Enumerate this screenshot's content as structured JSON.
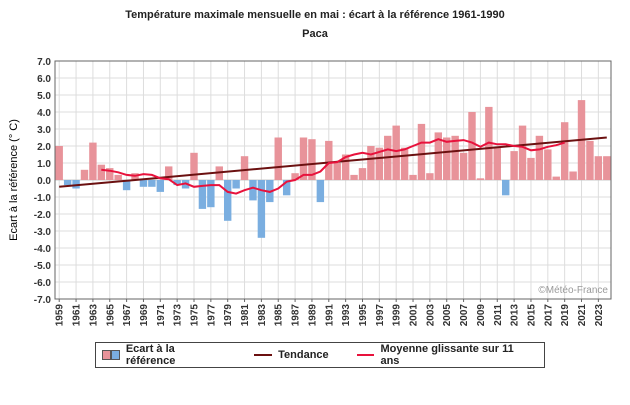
{
  "title": "Température maximale mensuelle en mai : écart à la référence 1961-1990",
  "subtitle": "Paca",
  "watermark": "©Météo-France",
  "colors": {
    "positive": "#e8939a",
    "negative": "#7aaee0",
    "trend": "#6b1010",
    "moving_average": "#e8123c",
    "grid": "#dddddd"
  },
  "legend": {
    "bars": "Ecart à la référence",
    "trend": "Tendance",
    "moving_average": "Moyenne glissante sur 11 ans"
  },
  "chart_data": {
    "type": "bar",
    "title": "Température maximale mensuelle en mai : écart à la référence 1961-1990",
    "subtitle": "Paca",
    "xlabel": "",
    "ylabel": "Ecart à la référence (° C)",
    "ylim": [
      -7.0,
      7.0
    ],
    "yticks": [
      7.0,
      6.0,
      5.0,
      4.0,
      3.0,
      2.0,
      1.0,
      0.0,
      -1.0,
      -2.0,
      -3.0,
      -4.0,
      -5.0,
      -6.0,
      -7.0
    ],
    "ytick_labels": [
      "7.0",
      "6.0",
      "5.0",
      "4.0",
      "3.0",
      "2.0",
      "1.0",
      "0.0",
      "-1.0",
      "-2.0",
      "-3.0",
      "-4.0",
      "-5.0",
      "-6.0",
      "-7.0"
    ],
    "xtick_labels": [
      "1959",
      "1961",
      "1963",
      "1965",
      "1967",
      "1969",
      "1971",
      "1973",
      "1975",
      "1977",
      "1979",
      "1981",
      "1983",
      "1985",
      "1987",
      "1989",
      "1991",
      "1993",
      "1995",
      "1997",
      "1999",
      "2001",
      "2003",
      "2005",
      "2007",
      "2009",
      "2011",
      "2013",
      "2015",
      "2017",
      "2019",
      "2021",
      "2023"
    ],
    "grid": true,
    "legend_position": "bottom",
    "years": [
      1959,
      1960,
      1961,
      1962,
      1963,
      1964,
      1965,
      1966,
      1967,
      1968,
      1969,
      1970,
      1971,
      1972,
      1973,
      1974,
      1975,
      1976,
      1977,
      1978,
      1979,
      1980,
      1981,
      1982,
      1983,
      1984,
      1985,
      1986,
      1987,
      1988,
      1989,
      1990,
      1991,
      1992,
      1993,
      1994,
      1995,
      1996,
      1997,
      1998,
      1999,
      2000,
      2001,
      2002,
      2003,
      2004,
      2005,
      2006,
      2007,
      2008,
      2009,
      2010,
      2011,
      2012,
      2013,
      2014,
      2015,
      2016,
      2017,
      2018,
      2019,
      2020,
      2021,
      2022,
      2023,
      2024
    ],
    "series": [
      {
        "name": "Ecart à la référence",
        "values": [
          2.0,
          -0.3,
          -0.5,
          0.6,
          2.2,
          0.9,
          0.7,
          0.3,
          -0.6,
          0.4,
          -0.4,
          -0.4,
          -0.7,
          0.8,
          -0.3,
          -0.5,
          1.6,
          -1.7,
          -1.6,
          0.8,
          -2.4,
          -0.5,
          1.4,
          -1.2,
          -3.4,
          -1.3,
          2.5,
          -0.9,
          0.4,
          2.5,
          2.4,
          -1.3,
          2.3,
          1.0,
          1.5,
          0.3,
          0.7,
          2.0,
          1.9,
          2.6,
          3.2,
          1.9,
          0.3,
          3.3,
          0.4,
          2.8,
          2.5,
          2.6,
          1.6,
          4.0,
          0.1,
          4.3,
          1.9,
          -0.9,
          1.7,
          3.2,
          1.3,
          2.6,
          1.8,
          0.2,
          3.4,
          0.5,
          4.7,
          2.3,
          1.4,
          1.4
        ]
      },
      {
        "name": "Tendance",
        "start": [
          1959,
          -0.4
        ],
        "end": [
          2024,
          2.5
        ]
      },
      {
        "name": "Moyenne glissante sur 11 ans",
        "years": [
          1964,
          1965,
          1966,
          1967,
          1968,
          1969,
          1970,
          1971,
          1972,
          1973,
          1974,
          1975,
          1976,
          1977,
          1978,
          1979,
          1980,
          1981,
          1982,
          1983,
          1984,
          1985,
          1986,
          1987,
          1988,
          1989,
          1990,
          1991,
          1992,
          1993,
          1994,
          1995,
          1996,
          1997,
          1998,
          1999,
          2000,
          2001,
          2002,
          2003,
          2004,
          2005,
          2006,
          2007,
          2008,
          2009,
          2010,
          2011,
          2012,
          2013,
          2014,
          2015,
          2016,
          2017,
          2018,
          2019
        ],
        "values": [
          0.6,
          0.55,
          0.45,
          0.3,
          0.25,
          0.35,
          0.3,
          0.1,
          0.05,
          -0.3,
          -0.2,
          -0.4,
          -0.35,
          -0.3,
          -0.3,
          -0.7,
          -0.8,
          -0.6,
          -0.45,
          -0.6,
          -0.7,
          -0.5,
          -0.1,
          0.0,
          0.3,
          0.3,
          0.5,
          1.0,
          1.05,
          1.35,
          1.5,
          1.6,
          1.5,
          1.65,
          1.8,
          1.7,
          1.8,
          2.0,
          2.2,
          2.2,
          2.4,
          2.25,
          2.3,
          2.35,
          2.2,
          1.95,
          2.2,
          2.1,
          2.1,
          2.0,
          1.95,
          1.75,
          1.8,
          1.95,
          2.05,
          2.2
        ]
      }
    ]
  }
}
